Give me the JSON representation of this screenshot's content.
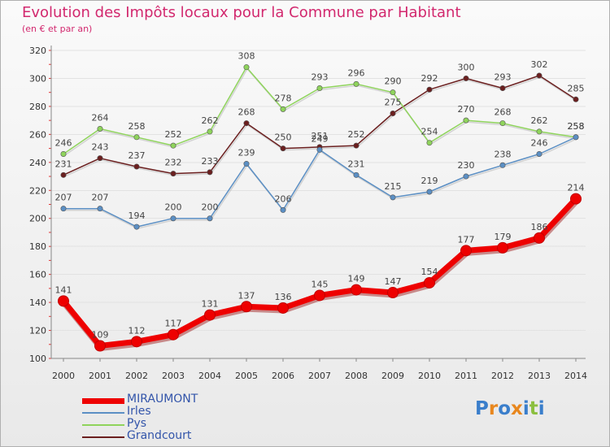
{
  "header": {
    "title": "Evolution des Impôts locaux pour la Commune par Habitant",
    "subtitle": "(en € et par an)"
  },
  "logo": {
    "letters": [
      "P",
      "r",
      "o",
      "x",
      "i",
      "t",
      "i"
    ],
    "colors": [
      "#3a7ecb",
      "#e8871e",
      "#3a7ecb",
      "#e8871e",
      "#3a7ecb",
      "#8bbf3f",
      "#3a7ecb"
    ]
  },
  "chart_data": {
    "type": "line",
    "title": "Evolution des Impôts locaux pour la Commune par Habitant",
    "subtitle": "(en € et par an)",
    "x": [
      "2000",
      "2001",
      "2002",
      "2003",
      "2004",
      "2005",
      "2006",
      "2007",
      "2008",
      "2009",
      "2010",
      "2011",
      "2012",
      "2013",
      "2014"
    ],
    "ylim": [
      100,
      320
    ],
    "yticks": [
      100,
      120,
      140,
      160,
      180,
      200,
      220,
      240,
      260,
      280,
      300,
      320
    ],
    "grid": true,
    "legend_position": "bottom-left",
    "series": [
      {
        "name": "MIRAUMONT",
        "color": "#ee0000",
        "values": [
          141,
          109,
          112,
          117,
          131,
          137,
          136,
          145,
          149,
          147,
          154,
          177,
          179,
          186,
          214
        ]
      },
      {
        "name": "Irles",
        "color": "#5b8fc4",
        "values": [
          207,
          207,
          194,
          200,
          200,
          239,
          206,
          249,
          231,
          215,
          219,
          230,
          238,
          246,
          258
        ]
      },
      {
        "name": "Pys",
        "color": "#8fd45c",
        "values": [
          246,
          264,
          258,
          252,
          262,
          308,
          278,
          293,
          296,
          290,
          254,
          270,
          268,
          262,
          258
        ]
      },
      {
        "name": "Grandcourt",
        "color": "#6b1f1f",
        "values": [
          231,
          243,
          237,
          232,
          233,
          268,
          250,
          251,
          252,
          275,
          292,
          300,
          293,
          302,
          285
        ]
      }
    ]
  }
}
